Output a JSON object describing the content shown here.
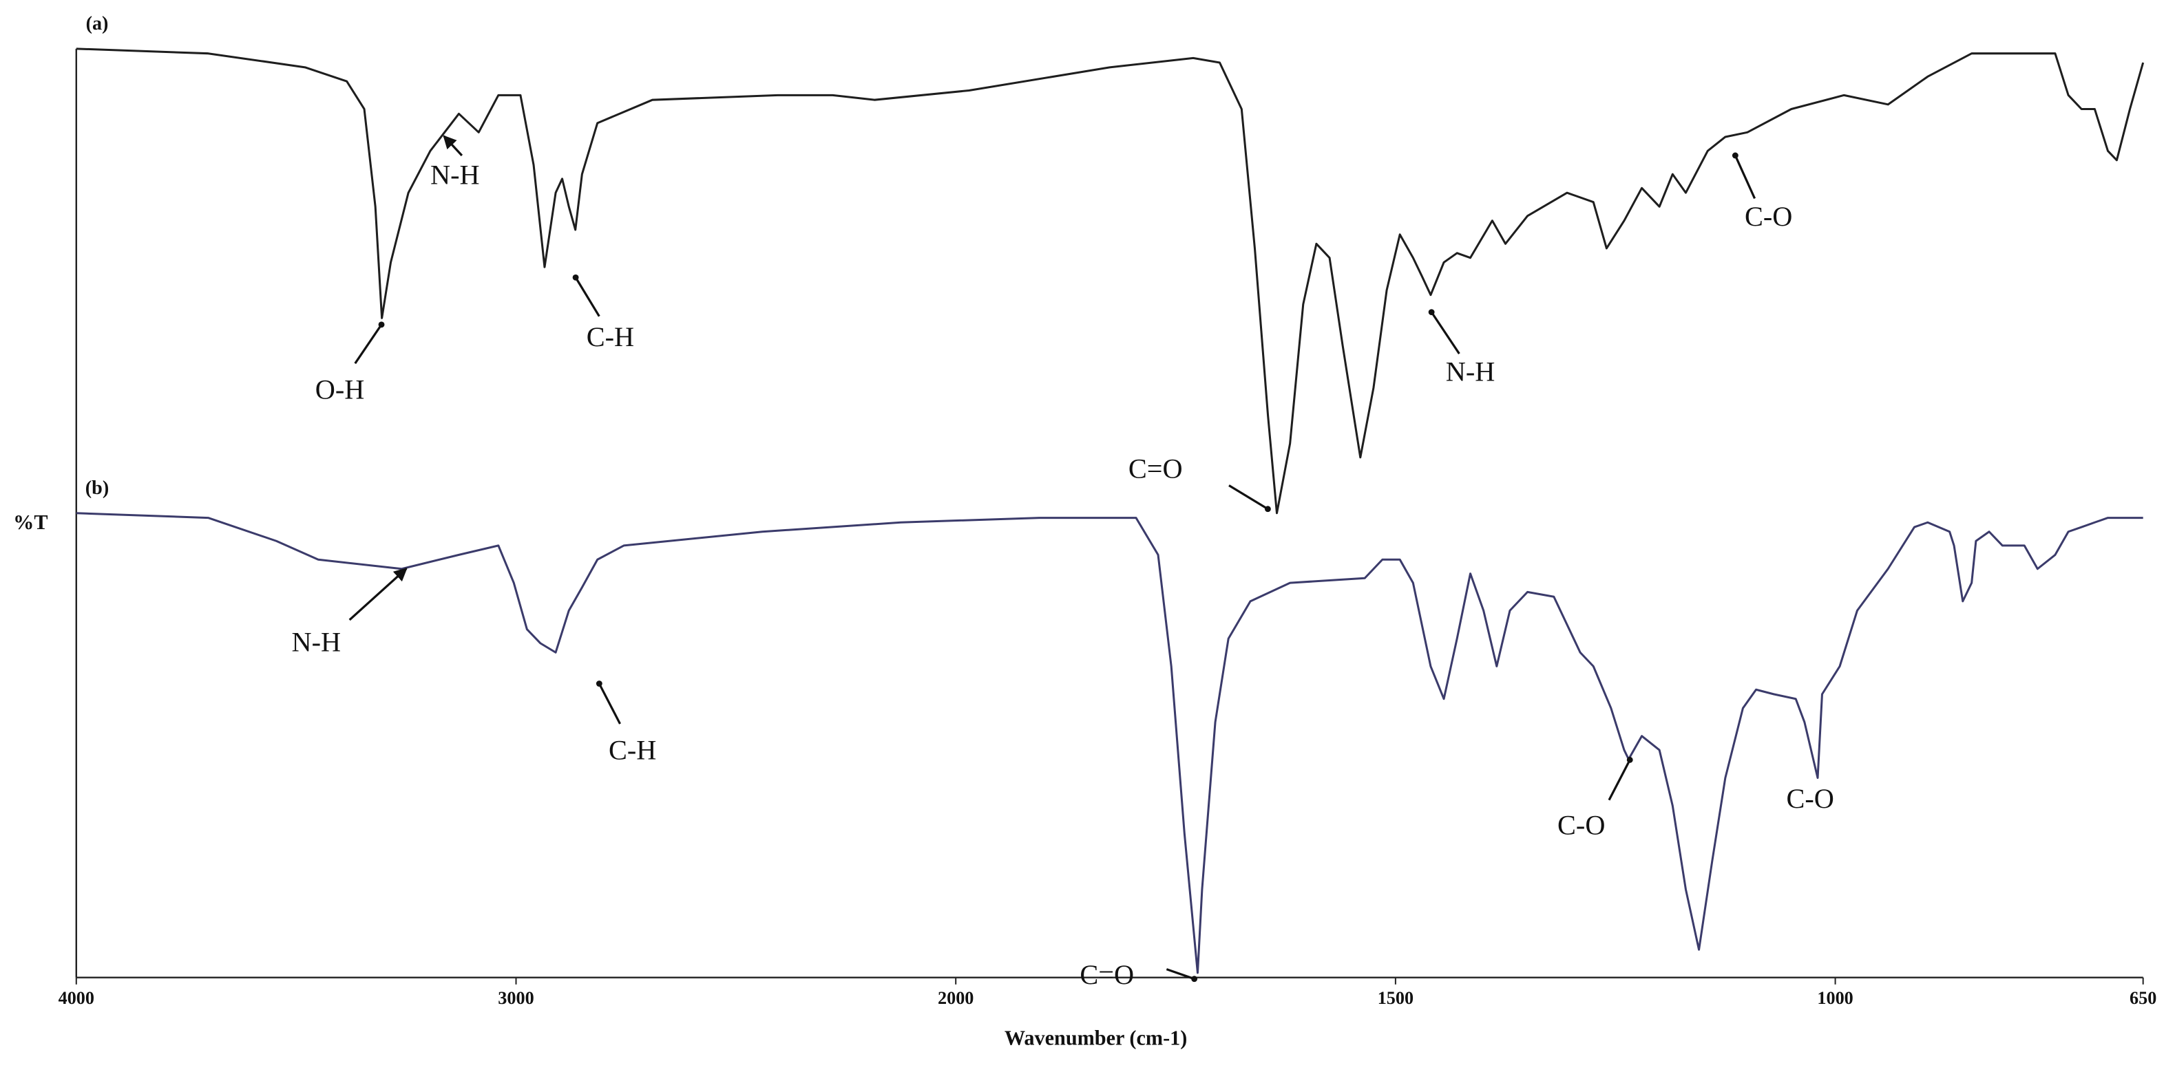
{
  "chart_data": {
    "type": "line",
    "ylabel": "%T",
    "xlabel": "Wavenumber (cm-1)",
    "xlim": [
      4000,
      650
    ],
    "xticks": [
      4000,
      3000,
      2000,
      1500,
      1000,
      650
    ],
    "x_scale_break": 2000,
    "ylim": [
      0,
      100
    ],
    "series": [
      {
        "name": "(a)",
        "color": "#1e1e1e",
        "x": [
          4000,
          3700,
          3480,
          3385,
          3345,
          3320,
          3305,
          3285,
          3245,
          3195,
          3130,
          3085,
          3040,
          2990,
          2960,
          2935,
          2910,
          2895,
          2880,
          2865,
          2850,
          2815,
          2690,
          2405,
          2280,
          2185,
          1985,
          1825,
          1730,
          1700,
          1675,
          1660,
          1645,
          1635,
          1620,
          1605,
          1590,
          1575,
          1560,
          1540,
          1525,
          1510,
          1495,
          1480,
          1470,
          1460,
          1445,
          1430,
          1415,
          1390,
          1375,
          1350,
          1305,
          1275,
          1260,
          1240,
          1220,
          1200,
          1185,
          1170,
          1145,
          1125,
          1100,
          1050,
          990,
          940,
          895,
          845,
          800,
          750,
          735,
          720,
          705,
          690,
          680,
          665,
          650
        ],
        "values": [
          100,
          99.5,
          98,
          96.5,
          93.5,
          83,
          71,
          77,
          84.5,
          89,
          93,
          91,
          95,
          95,
          87.5,
          76.5,
          84.5,
          86,
          83,
          80.5,
          86.5,
          92,
          94.5,
          95,
          95,
          94.5,
          95.5,
          98,
          99,
          98.5,
          93.5,
          78.5,
          60.5,
          50,
          57.5,
          72.5,
          79,
          77.5,
          68,
          56,
          63.5,
          74,
          80,
          77.5,
          75.5,
          73.5,
          77,
          78,
          77.5,
          81.5,
          79,
          82,
          84.5,
          83.5,
          78.5,
          81.5,
          85,
          83,
          86.5,
          84.5,
          89,
          90.5,
          91,
          93.5,
          95,
          94,
          97,
          99.5,
          99.5,
          99.5,
          95,
          93.5,
          93.5,
          89,
          88,
          93.5,
          98.5
        ]
      },
      {
        "name": "(b)",
        "color": "#3b3b6b",
        "x": [
          4000,
          3700,
          3545,
          3450,
          3260,
          3130,
          3040,
          3005,
          2975,
          2945,
          2910,
          2880,
          2850,
          2815,
          2755,
          2440,
          2125,
          1905,
          1795,
          1770,
          1755,
          1740,
          1725,
          1720,
          1705,
          1690,
          1665,
          1620,
          1535,
          1515,
          1495,
          1480,
          1460,
          1445,
          1430,
          1415,
          1400,
          1385,
          1370,
          1350,
          1320,
          1305,
          1290,
          1275,
          1255,
          1240,
          1235,
          1220,
          1200,
          1185,
          1170,
          1155,
          1140,
          1125,
          1105,
          1090,
          1070,
          1045,
          1035,
          1020,
          1015,
          995,
          975,
          940,
          910,
          895,
          870,
          865,
          855,
          845,
          840,
          825,
          810,
          785,
          770,
          750,
          735,
          720,
          705,
          690,
          650
        ],
        "values": [
          50,
          49.5,
          47,
          45,
          44,
          45.5,
          46.5,
          42.5,
          37.5,
          36,
          35,
          39.5,
          42,
          45,
          46.5,
          48,
          49,
          49.5,
          49.5,
          45.5,
          33.5,
          15.5,
          0.5,
          9.5,
          27.5,
          36.5,
          40.5,
          42.5,
          43,
          45,
          45,
          42.5,
          33.5,
          30,
          36.5,
          43.5,
          39.5,
          33.5,
          39.5,
          41.5,
          41,
          38,
          35,
          33.5,
          29,
          24.5,
          23.5,
          26,
          24.5,
          18.5,
          9.5,
          3,
          12.5,
          21.5,
          29,
          31,
          30.5,
          30,
          27.5,
          21.5,
          30.5,
          33.5,
          39.5,
          44,
          48.5,
          49,
          48,
          46.5,
          40.5,
          42.5,
          47,
          48,
          46.5,
          46.5,
          44,
          45.5,
          48,
          48.5,
          49,
          49.5,
          49.5
        ]
      }
    ],
    "annotations": [
      "O-H",
      "N-H",
      "C-H",
      "C=O",
      "N-H",
      "C-O",
      "N-H",
      "C-H",
      "C=O",
      "C-O",
      "C-O"
    ]
  }
}
